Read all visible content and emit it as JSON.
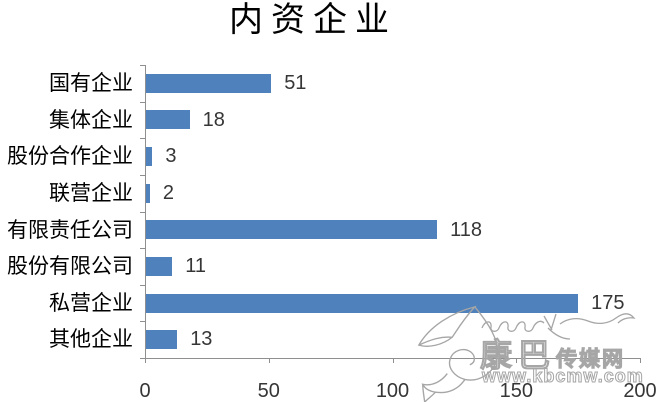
{
  "chart_data": {
    "type": "bar",
    "orientation": "horizontal",
    "title": "内资企业",
    "categories": [
      "国有企业",
      "集体企业",
      "股份合作企业",
      "联营企业",
      "有限责任公司",
      "股份有限公司",
      "私营企业",
      "其他企业"
    ],
    "values": [
      51,
      18,
      3,
      2,
      118,
      11,
      175,
      13
    ],
    "data_labels": [
      51,
      18,
      3,
      2,
      118,
      11,
      175,
      13
    ],
    "xlabel": "",
    "ylabel": "",
    "xlim": [
      0,
      200
    ],
    "xticks": [
      0,
      50,
      100,
      150,
      200
    ],
    "grid": "off",
    "legend": "none",
    "bar_color": "#4F81BD",
    "axis_color": "#8f8f8f",
    "tick_text_color": "#363636",
    "category_text_color": "#000000"
  },
  "watermark": {
    "brand_large": "康巴",
    "brand_small": "传媒网",
    "url": "www.kbcmw.com",
    "color": "#a6a6a6",
    "logo": "leaf-swirl-icon",
    "flourish": "scribble-flourish-icon"
  }
}
